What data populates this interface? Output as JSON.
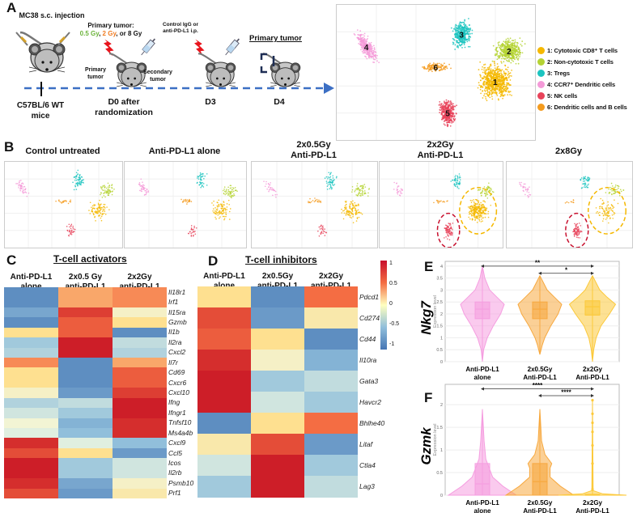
{
  "panel_labels": {
    "a": "A",
    "b": "B",
    "c": "C",
    "d": "D",
    "e": "E",
    "f": "F"
  },
  "panel_a": {
    "injection": "MC38 s.c. injection",
    "mouse_strain": "C57BL/6 WT mice",
    "primary_tumor_label": "Primary tumor:",
    "dose_05": "0.5 Gy",
    "dose_sep1": ", ",
    "dose_2": "2 Gy",
    "dose_8": ", or 8 Gy",
    "treatment": "Control IgG or anti-PD-L1 i.p.",
    "primary": "Primary tumor",
    "secondary": "Secondary tumor",
    "d0": "D0 after randomization",
    "d3": "D3",
    "d4": "D4",
    "harvest": "Primary tumor",
    "colors": {
      "dose_05": "#6bb33a",
      "dose_2": "#f07c22",
      "arrow": "#3c6fc4",
      "bolt": "#e8141c"
    }
  },
  "umap_legend": [
    {
      "num": "1",
      "label": "1: Cytotoxic CD8⁺ T cells",
      "color": "#f5b800"
    },
    {
      "num": "2",
      "label": "2: Non-cytotoxic T cells",
      "color": "#b5d334"
    },
    {
      "num": "3",
      "label": "3: Tregs",
      "color": "#1cc4c0"
    },
    {
      "num": "4",
      "label": "4: CCR7⁺ Dendritic cells",
      "color": "#f49ad8"
    },
    {
      "num": "5",
      "label": "5: NK cells",
      "color": "#e8435a"
    },
    {
      "num": "6",
      "label": "6: Dendritic cells and B cells",
      "color": "#f49b1e"
    }
  ],
  "panel_b": {
    "titles": [
      "Control untreated",
      "Anti-PD-L1 alone",
      "2x0.5Gy\nAnti-PD-L1",
      "2x2Gy\nAnti-PD-L1",
      "2x8Gy"
    ]
  },
  "panel_c": {
    "title": "T-cell activators",
    "columns": [
      "Anti-PD-L1\nalone",
      "2x0.5 Gy\nanti-PD-L1",
      "2x2Gy\nanti-PD-L1"
    ],
    "genes": [
      "Il18r1",
      "Irf1",
      "Il15ra",
      "Gzmb",
      "Il1b",
      "Il2ra",
      "Cxcl2",
      "Il7r",
      "Cd69",
      "Cxcr6",
      "Cxcl10",
      "Ifng",
      "Ifngr1",
      "Tnfsf10",
      "Ms4a4b",
      "Cxcl9",
      "Ccl5",
      "Icos",
      "Il2rb",
      "Psmb10",
      "Prf1"
    ],
    "values": [
      [
        -1,
        0.5,
        0.6
      ],
      [
        -1,
        0.5,
        0.6
      ],
      [
        -0.8,
        1,
        0.1
      ],
      [
        -1,
        0.8,
        0.3
      ],
      [
        0.3,
        0.8,
        -1
      ],
      [
        -0.5,
        1.2,
        -0.3
      ],
      [
        -0.4,
        1.2,
        -0.4
      ],
      [
        0.6,
        -1,
        0.5
      ],
      [
        0.3,
        -1,
        0.8
      ],
      [
        0.3,
        -1,
        0.8
      ],
      [
        0.1,
        -0.9,
        1
      ],
      [
        -0.4,
        -0.3,
        1.2
      ],
      [
        -0.2,
        -0.5,
        1.2
      ],
      [
        0.05,
        -0.7,
        1.1
      ],
      [
        -0.1,
        -0.6,
        1.1
      ],
      [
        1.1,
        -0.1,
        -0.6
      ],
      [
        0.9,
        0.3,
        -0.9
      ],
      [
        1.2,
        -0.5,
        -0.2
      ],
      [
        1.2,
        -0.5,
        -0.2
      ],
      [
        1.1,
        -0.8,
        0.1
      ],
      [
        0.9,
        -0.9,
        0.2
      ]
    ]
  },
  "panel_d": {
    "title": "T-cell inhibitors",
    "columns": [
      "Anti-PD-L1\nalone",
      "2x0.5Gy\nanti-PD-L1",
      "2x2Gy\nanti-PD-L1"
    ],
    "genes": [
      "Pdcd1",
      "Cd274",
      "Cd44",
      "Il10ra",
      "Gata3",
      "Havcr2",
      "Bhlhe40",
      "Litaf",
      "Ctla4",
      "Lag3"
    ],
    "values": [
      [
        0.3,
        -1,
        0.7
      ],
      [
        0.9,
        -0.9,
        0.2
      ],
      [
        0.8,
        0.3,
        -1
      ],
      [
        1.1,
        0.1,
        -0.7
      ],
      [
        1.2,
        -0.5,
        -0.3
      ],
      [
        1.2,
        -0.2,
        -0.5
      ],
      [
        -1,
        0.3,
        0.7
      ],
      [
        0.2,
        0.9,
        -0.9
      ],
      [
        -0.2,
        1.2,
        -0.5
      ],
      [
        -0.5,
        1.2,
        -0.3
      ]
    ],
    "colorbar_ticks": [
      "1",
      "0.5",
      "0",
      "-0.5",
      "-1"
    ]
  },
  "chart_data": [
    {
      "type": "violin",
      "title": "Nkg7",
      "ylabel": "Expression level",
      "ylim": [
        0,
        4.2
      ],
      "yticks": [
        "0",
        "0.5",
        "1",
        "1.5",
        "2",
        "2.5",
        "3",
        "3.5",
        "4"
      ],
      "categories": [
        "Anti-PD-L1\nalone",
        "2x0.5Gy\nAnti-PD-L1",
        "2x2Gy\nAnti-PD-L1"
      ],
      "colors": [
        "#f59ee0",
        "#f7a940",
        "#fcc93a"
      ],
      "series": [
        {
          "q1": 1.8,
          "median": 2.2,
          "q3": 2.5,
          "profile": [
            [
              0,
              0
            ],
            [
              0.5,
              0.05
            ],
            [
              1,
              0.2
            ],
            [
              1.5,
              0.45
            ],
            [
              2,
              0.75
            ],
            [
              2.4,
              0.9
            ],
            [
              2.7,
              0.6
            ],
            [
              3,
              0.3
            ],
            [
              3.5,
              0.1
            ],
            [
              4,
              0
            ]
          ]
        },
        {
          "q1": 1.8,
          "median": 2.2,
          "q3": 2.5,
          "profile": [
            [
              0.3,
              0
            ],
            [
              0.7,
              0.1
            ],
            [
              1,
              0.2
            ],
            [
              1.5,
              0.45
            ],
            [
              2,
              0.75
            ],
            [
              2.4,
              0.9
            ],
            [
              2.7,
              0.6
            ],
            [
              3,
              0.3
            ],
            [
              3.6,
              0
            ]
          ]
        },
        {
          "q1": 1.95,
          "median": 2.3,
          "q3": 2.55,
          "profile": [
            [
              0,
              0
            ],
            [
              0.5,
              0.05
            ],
            [
              1,
              0.15
            ],
            [
              1.5,
              0.35
            ],
            [
              2,
              0.7
            ],
            [
              2.4,
              0.95
            ],
            [
              2.7,
              0.6
            ],
            [
              3,
              0.3
            ],
            [
              3.6,
              0
            ]
          ]
        }
      ],
      "significance": [
        {
          "from": 0,
          "to": 2,
          "y": 4.0,
          "label": "**"
        },
        {
          "from": 1,
          "to": 2,
          "y": 3.7,
          "label": "*"
        }
      ]
    },
    {
      "type": "violin",
      "title": "Gzmk",
      "ylabel": "Expression level",
      "ylim": [
        0,
        2.45
      ],
      "yticks": [
        "0",
        "0.5",
        "1",
        "1.5",
        "2"
      ],
      "categories": [
        "Anti-PD-L1\nalone",
        "2x0.5Gy\nAnti-PD-L1",
        "2x2Gy\nAnti-PD-L1"
      ],
      "colors": [
        "#f59ee0",
        "#f7a940",
        "#fcc93a"
      ],
      "series": [
        {
          "q1": 0,
          "median": 0.25,
          "q3": 0.7,
          "profile": [
            [
              0,
              1
            ],
            [
              0.2,
              0.6
            ],
            [
              0.4,
              0.3
            ],
            [
              0.6,
              0.2
            ],
            [
              0.8,
              0.1
            ],
            [
              1.2,
              0.05
            ],
            [
              1.9,
              0
            ]
          ]
        },
        {
          "q1": 0,
          "median": 0.3,
          "q3": 0.7,
          "profile": [
            [
              0,
              1
            ],
            [
              0.2,
              0.6
            ],
            [
              0.4,
              0.3
            ],
            [
              0.6,
              0.3
            ],
            [
              0.7,
              0.35
            ],
            [
              0.9,
              0.15
            ],
            [
              1.2,
              0.05
            ],
            [
              1.9,
              0
            ]
          ]
        },
        {
          "q1": 0,
          "median": 0,
          "q3": 0.02,
          "profile": [
            [
              0,
              1
            ],
            [
              0.03,
              0.3
            ],
            [
              0.1,
              0.02
            ],
            [
              2.1,
              0
            ]
          ],
          "points": [
            0.13,
            0.7,
            1.1,
            1.4,
            1.6,
            1.8,
            2.1
          ]
        }
      ],
      "significance": [
        {
          "from": 0,
          "to": 2,
          "y": 2.35,
          "label": "****"
        },
        {
          "from": 1,
          "to": 2,
          "y": 2.2,
          "label": "****"
        }
      ]
    }
  ]
}
